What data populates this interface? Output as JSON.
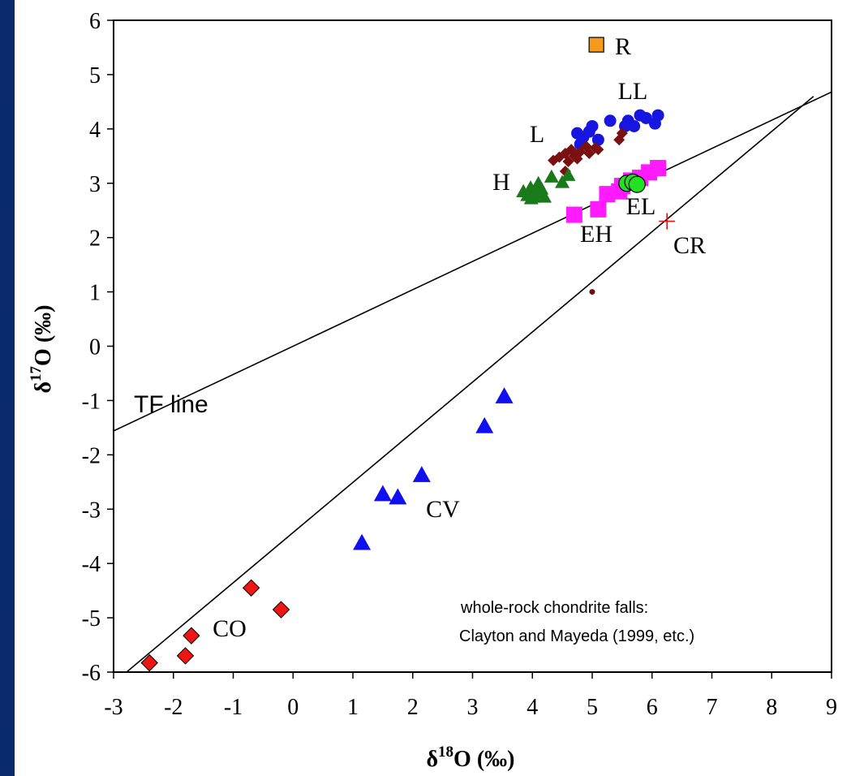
{
  "chart_data": {
    "type": "scatter",
    "xlabel": "δ¹⁸O (‰)",
    "ylabel": "δ¹⁷O (‰)",
    "xlim": [
      -3,
      9
    ],
    "ylim": [
      -6,
      6
    ],
    "x_ticks": [
      "-3",
      "-2",
      "-1",
      "0",
      "1",
      "2",
      "3",
      "4",
      "5",
      "6",
      "7",
      "8",
      "9"
    ],
    "y_ticks": [
      "-6",
      "-5",
      "-4",
      "-3",
      "-2",
      "-1",
      "0",
      "1",
      "2",
      "3",
      "4",
      "5",
      "6"
    ],
    "grid": false,
    "lines": [
      {
        "name": "TF line",
        "x": [
          -3,
          9
        ],
        "y": [
          -1.56,
          4.68
        ]
      },
      {
        "name": "",
        "x": [
          -3,
          8.7
        ],
        "y": [
          -6.2,
          4.6
        ]
      }
    ],
    "series": [
      {
        "name": "R",
        "marker": "square",
        "color": "#f59a1b",
        "points": [
          [
            5.07,
            5.55
          ]
        ]
      },
      {
        "name": "LL",
        "marker": "circle",
        "color": "#1616e0",
        "points": [
          [
            4.75,
            3.92
          ],
          [
            4.85,
            3.85
          ],
          [
            4.95,
            3.95
          ],
          [
            5.0,
            4.05
          ],
          [
            5.1,
            3.8
          ],
          [
            5.3,
            4.15
          ],
          [
            5.55,
            4.05
          ],
          [
            5.6,
            4.15
          ],
          [
            5.7,
            4.05
          ],
          [
            5.8,
            4.25
          ],
          [
            5.9,
            4.2
          ],
          [
            6.05,
            4.1
          ],
          [
            6.1,
            4.25
          ],
          [
            4.8,
            3.72
          ]
        ]
      },
      {
        "name": "L",
        "marker": "diamond",
        "color": "#7b1010",
        "points": [
          [
            4.35,
            3.42
          ],
          [
            4.45,
            3.48
          ],
          [
            4.55,
            3.55
          ],
          [
            4.6,
            3.4
          ],
          [
            4.65,
            3.62
          ],
          [
            4.7,
            3.5
          ],
          [
            4.8,
            3.58
          ],
          [
            4.9,
            3.68
          ],
          [
            4.95,
            3.55
          ],
          [
            5.05,
            3.65
          ],
          [
            5.1,
            3.62
          ],
          [
            4.75,
            3.45
          ],
          [
            4.55,
            3.22
          ],
          [
            5.45,
            3.8
          ],
          [
            5.5,
            3.92
          ]
        ]
      },
      {
        "name": "H",
        "marker": "triangle",
        "color": "#1a7a1a",
        "points": [
          [
            3.85,
            2.85
          ],
          [
            3.92,
            2.78
          ],
          [
            3.97,
            2.92
          ],
          [
            4.02,
            2.75
          ],
          [
            4.07,
            2.82
          ],
          [
            4.1,
            3.0
          ],
          [
            4.15,
            2.9
          ],
          [
            4.2,
            2.75
          ],
          [
            4.32,
            3.12
          ],
          [
            4.5,
            3.02
          ],
          [
            4.6,
            3.15
          ],
          [
            3.98,
            2.72
          ]
        ]
      },
      {
        "name": "EH",
        "marker": "square",
        "color": "#ff1aff",
        "points": [
          [
            4.7,
            2.42
          ],
          [
            5.1,
            2.52
          ],
          [
            5.25,
            2.8
          ],
          [
            5.45,
            2.85
          ],
          [
            5.5,
            2.95
          ],
          [
            5.65,
            3.05
          ],
          [
            5.8,
            3.1
          ],
          [
            5.95,
            3.2
          ],
          [
            6.1,
            3.28
          ]
        ]
      },
      {
        "name": "EL",
        "marker": "circle",
        "color": "#22e022",
        "points": [
          [
            5.58,
            3.0
          ],
          [
            5.68,
            3.02
          ],
          [
            5.75,
            2.98
          ]
        ]
      },
      {
        "name": "CR",
        "marker": "plus",
        "color": "#e01515",
        "points": [
          [
            6.25,
            2.3
          ]
        ]
      },
      {
        "name": "CV",
        "marker": "triangle",
        "color": "#0f0ff0",
        "points": [
          [
            3.53,
            -0.92
          ],
          [
            3.2,
            -1.47
          ],
          [
            2.15,
            -2.37
          ],
          [
            1.75,
            -2.78
          ],
          [
            1.5,
            -2.72
          ],
          [
            1.15,
            -3.62
          ]
        ]
      },
      {
        "name": "CO",
        "marker": "diamond",
        "color": "#ee1515",
        "points": [
          [
            -0.7,
            -4.45
          ],
          [
            -0.2,
            -4.85
          ],
          [
            -1.7,
            -5.33
          ],
          [
            -1.8,
            -5.7
          ],
          [
            -2.4,
            -5.83
          ]
        ]
      }
    ],
    "extra_points": [
      {
        "x": 5.0,
        "y": 1.0,
        "color": "#6b0f0f"
      }
    ],
    "annotations": {
      "tf_line": "TF line",
      "source_line1": "whole-rock chondrite falls:",
      "source_line2": "Clayton and Mayeda (1999, etc.)"
    }
  }
}
